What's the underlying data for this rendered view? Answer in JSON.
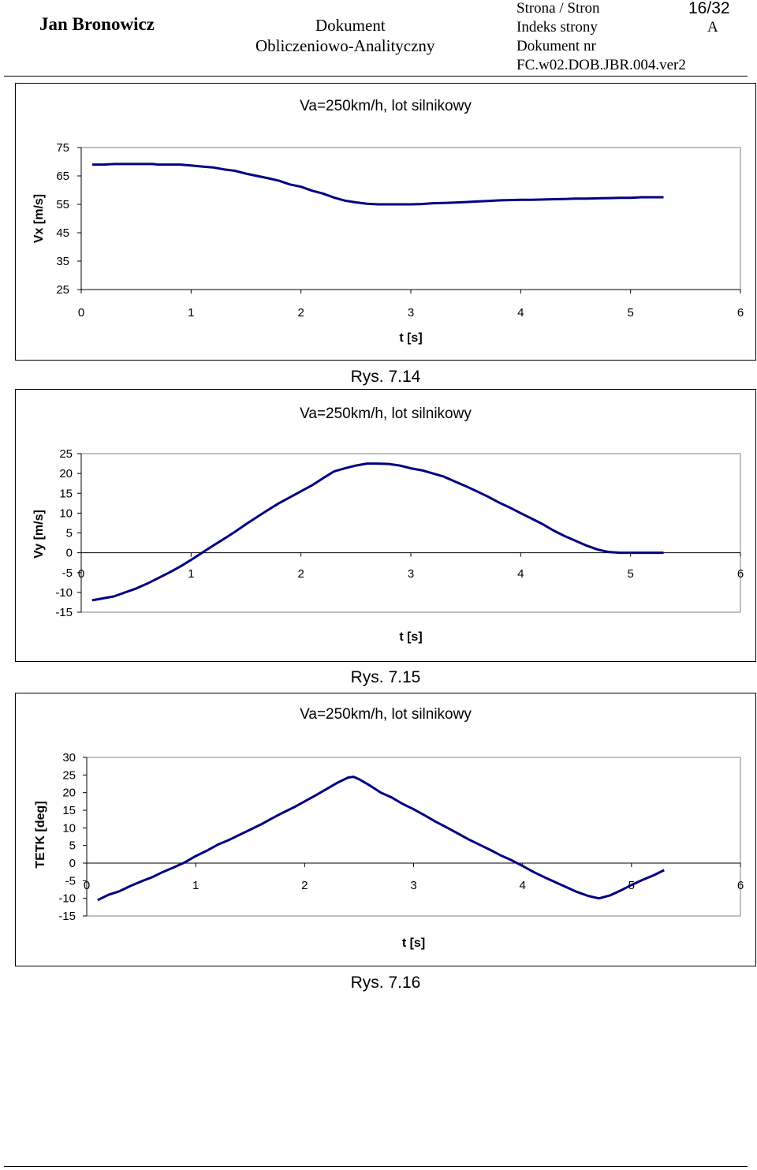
{
  "header": {
    "author": "Jan Bronowicz",
    "doc_title_line1": "Dokument",
    "doc_title_line2": "Obliczeniowo-Analityczny",
    "page_label": "Strona / Stron",
    "page_value": "16/32",
    "index_label": "Indeks strony",
    "index_value": "A",
    "docnr_label": "Dokument nr",
    "docnr_value": "FC.w02.DOB.JBR.004.ver2"
  },
  "captions": [
    "Rys. 7.14",
    "Rys. 7.15",
    "Rys. 7.16"
  ],
  "colors": {
    "line": "#000080",
    "axis": "#000000"
  },
  "chart_data": [
    {
      "type": "line",
      "title": "Va=250km/h, lot silnikowy",
      "xlabel": "t [s]",
      "ylabel": "Vx [m/s]",
      "xlim": [
        0,
        6
      ],
      "ylim": [
        25,
        75
      ],
      "xticks": [
        "0",
        "1",
        "2",
        "3",
        "4",
        "5",
        "6"
      ],
      "yticks": [
        "75",
        "65",
        "55",
        "45",
        "35",
        "25"
      ],
      "grid": false,
      "legend": "none",
      "series": [
        {
          "x": [
            0.1,
            0.2,
            0.3,
            0.5,
            0.65,
            0.7,
            0.9,
            1.0,
            1.1,
            1.2,
            1.3,
            1.4,
            1.5,
            1.6,
            1.7,
            1.8,
            1.9,
            2.0,
            2.1,
            2.2,
            2.3,
            2.4,
            2.5,
            2.6,
            2.7,
            2.8,
            2.9,
            3.0,
            3.1,
            3.2,
            3.3,
            3.4,
            3.5,
            3.6,
            3.7,
            3.8,
            3.9,
            4.0,
            4.1,
            4.2,
            4.3,
            4.4,
            4.5,
            4.6,
            4.7,
            4.8,
            4.9,
            5.0,
            5.1,
            5.2,
            5.3
          ],
          "y": [
            69,
            69,
            69.2,
            69.2,
            69.2,
            69.0,
            69.0,
            68.7,
            68.3,
            68.0,
            67.3,
            66.8,
            65.8,
            65.0,
            64.2,
            63.3,
            62.0,
            61.2,
            59.8,
            58.8,
            57.4,
            56.3,
            55.7,
            55.2,
            55.0,
            55.0,
            55.0,
            55.0,
            55.1,
            55.4,
            55.5,
            55.6,
            55.8,
            56.0,
            56.2,
            56.4,
            56.5,
            56.6,
            56.6,
            56.7,
            56.8,
            56.9,
            57.0,
            57.0,
            57.1,
            57.2,
            57.3,
            57.3,
            57.5,
            57.5,
            57.5
          ]
        }
      ]
    },
    {
      "type": "line",
      "title": "Va=250km/h, lot silnikowy",
      "xlabel": "t [s]",
      "ylabel": "Vy [m/s]",
      "xlim": [
        0,
        6
      ],
      "ylim": [
        -15,
        25
      ],
      "xticks": [
        "0",
        "1",
        "2",
        "3",
        "4",
        "5",
        "6"
      ],
      "yticks": [
        "25",
        "20",
        "15",
        "10",
        "5",
        "0",
        "-5",
        "-10",
        "-15"
      ],
      "grid": false,
      "legend": "none",
      "series": [
        {
          "x": [
            0.1,
            0.2,
            0.3,
            0.4,
            0.5,
            0.6,
            0.7,
            0.8,
            0.9,
            1.0,
            1.1,
            1.2,
            1.3,
            1.4,
            1.5,
            1.6,
            1.7,
            1.8,
            1.9,
            2.0,
            2.1,
            2.2,
            2.3,
            2.4,
            2.5,
            2.6,
            2.7,
            2.8,
            2.9,
            3.0,
            3.1,
            3.2,
            3.3,
            3.4,
            3.5,
            3.6,
            3.7,
            3.8,
            3.9,
            4.0,
            4.1,
            4.2,
            4.3,
            4.4,
            4.5,
            4.6,
            4.7,
            4.8,
            4.9,
            5.0,
            5.1,
            5.2,
            5.3
          ],
          "y": [
            -12,
            -11.5,
            -11,
            -10,
            -9,
            -7.8,
            -6.4,
            -5,
            -3.5,
            -1.8,
            0,
            1.8,
            3.5,
            5.3,
            7.2,
            9,
            10.8,
            12.5,
            14,
            15.5,
            17,
            18.8,
            20.5,
            21.3,
            22,
            22.5,
            22.5,
            22.4,
            22,
            21.3,
            20.8,
            20,
            19.2,
            18,
            16.8,
            15.5,
            14.2,
            12.7,
            11.4,
            10,
            8.6,
            7.2,
            5.6,
            4.2,
            3,
            1.8,
            0.8,
            0.2,
            0,
            0,
            0,
            0,
            0
          ]
        }
      ]
    },
    {
      "type": "line",
      "title": "Va=250km/h, lot silnikowy",
      "xlabel": "t [s]",
      "ylabel": "TETK  [deg]",
      "xlim": [
        0,
        6
      ],
      "ylim": [
        -15,
        30
      ],
      "xticks": [
        "0",
        "1",
        "2",
        "3",
        "4",
        "5",
        "6"
      ],
      "yticks": [
        "30",
        "25",
        "20",
        "15",
        "10",
        "5",
        "0",
        "-5",
        "-10",
        "-15"
      ],
      "grid": false,
      "legend": "none",
      "series": [
        {
          "x": [
            0.1,
            0.2,
            0.3,
            0.4,
            0.5,
            0.6,
            0.7,
            0.8,
            0.9,
            1.0,
            1.1,
            1.2,
            1.3,
            1.4,
            1.5,
            1.6,
            1.7,
            1.8,
            1.9,
            2.0,
            2.1,
            2.2,
            2.3,
            2.4,
            2.45,
            2.5,
            2.6,
            2.7,
            2.8,
            2.9,
            3.0,
            3.1,
            3.2,
            3.3,
            3.4,
            3.5,
            3.6,
            3.7,
            3.8,
            3.9,
            4.0,
            4.1,
            4.2,
            4.3,
            4.4,
            4.5,
            4.6,
            4.7,
            4.8,
            4.9,
            5.0,
            5.1,
            5.2,
            5.3
          ],
          "y": [
            -10.5,
            -9,
            -8,
            -6.5,
            -5.2,
            -4,
            -2.5,
            -1.2,
            0.2,
            2,
            3.5,
            5.2,
            6.5,
            8,
            9.5,
            11,
            12.7,
            14.3,
            15.8,
            17.5,
            19.2,
            21,
            22.8,
            24.3,
            24.5,
            23.8,
            22,
            20,
            18.6,
            16.8,
            15.3,
            13.6,
            11.8,
            10.2,
            8.5,
            6.8,
            5.3,
            3.8,
            2.2,
            0.8,
            -0.8,
            -2.5,
            -4,
            -5.4,
            -6.8,
            -8.2,
            -9.3,
            -10,
            -9.2,
            -7.8,
            -6.2,
            -4.8,
            -3.5,
            -2
          ]
        }
      ]
    }
  ]
}
